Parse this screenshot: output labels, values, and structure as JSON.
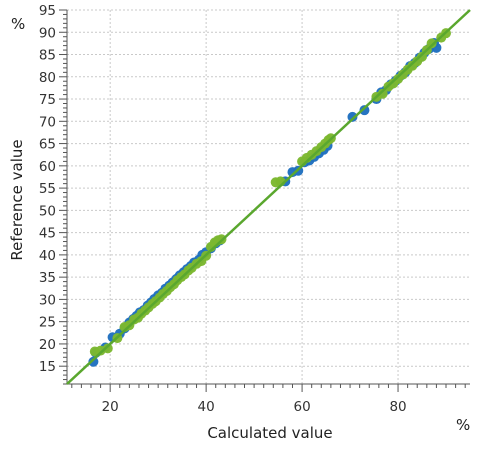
{
  "chart_data": {
    "type": "scatter",
    "xlabel": "Calculated value",
    "ylabel": "Reference value",
    "x_unit": "%",
    "y_unit": "%",
    "xlim": [
      11,
      95
    ],
    "ylim": [
      11,
      95
    ],
    "x_ticks": [
      20,
      40,
      60,
      80
    ],
    "y_ticks": [
      15,
      20,
      25,
      30,
      35,
      40,
      45,
      50,
      55,
      60,
      65,
      70,
      75,
      80,
      85,
      90,
      95
    ],
    "grid": true,
    "grid_style": "dotted",
    "regression_line": {
      "from": [
        11,
        11
      ],
      "to": [
        95,
        95
      ],
      "color": "#5aa72e"
    },
    "series": [
      {
        "color": "#1f6fbf",
        "points": [
          [
            16.5,
            16.0
          ],
          [
            17.0,
            18.0
          ],
          [
            19.0,
            19.2
          ],
          [
            20.5,
            21.5
          ],
          [
            22.0,
            22.3
          ],
          [
            23.0,
            23.5
          ],
          [
            24.0,
            24.8
          ],
          [
            24.8,
            25.6
          ],
          [
            25.5,
            26.3
          ],
          [
            26.2,
            27.1
          ],
          [
            27.0,
            27.6
          ],
          [
            27.8,
            28.6
          ],
          [
            28.5,
            29.3
          ],
          [
            29.2,
            30.1
          ],
          [
            30.0,
            30.9
          ],
          [
            30.8,
            31.5
          ],
          [
            31.5,
            32.4
          ],
          [
            32.3,
            33.1
          ],
          [
            33.0,
            33.8
          ],
          [
            33.8,
            34.6
          ],
          [
            34.5,
            35.4
          ],
          [
            35.3,
            36.1
          ],
          [
            36.0,
            36.8
          ],
          [
            36.8,
            37.5
          ],
          [
            37.5,
            38.3
          ],
          [
            38.5,
            38.9
          ],
          [
            39.2,
            40.0
          ],
          [
            40.0,
            40.6
          ],
          [
            41.0,
            41.5
          ],
          [
            42.0,
            42.6
          ],
          [
            42.8,
            43.2
          ],
          [
            56.5,
            56.5
          ],
          [
            58.0,
            58.6
          ],
          [
            59.2,
            58.9
          ],
          [
            60.5,
            60.8
          ],
          [
            61.5,
            61.2
          ],
          [
            62.5,
            62.0
          ],
          [
            63.5,
            62.8
          ],
          [
            64.5,
            63.6
          ],
          [
            65.3,
            64.5
          ],
          [
            70.5,
            71.0
          ],
          [
            73.0,
            72.5
          ],
          [
            75.5,
            75.0
          ],
          [
            76.5,
            76.5
          ],
          [
            77.5,
            77.0
          ],
          [
            78.5,
            78.3
          ],
          [
            79.5,
            79.1
          ],
          [
            80.5,
            80.2
          ],
          [
            81.5,
            81.0
          ],
          [
            82.5,
            82.4
          ],
          [
            83.5,
            83.1
          ],
          [
            84.5,
            84.3
          ],
          [
            85.5,
            85.4
          ],
          [
            86.5,
            86.3
          ],
          [
            87.5,
            87.6
          ],
          [
            88.0,
            86.5
          ]
        ]
      },
      {
        "color": "#7cb82f",
        "points": [
          [
            16.8,
            18.3
          ],
          [
            18.0,
            18.5
          ],
          [
            19.5,
            19.0
          ],
          [
            21.5,
            21.3
          ],
          [
            23.0,
            23.8
          ],
          [
            24.0,
            24.2
          ],
          [
            25.0,
            25.5
          ],
          [
            25.8,
            25.9
          ],
          [
            26.5,
            26.8
          ],
          [
            27.3,
            27.5
          ],
          [
            28.0,
            28.2
          ],
          [
            28.8,
            29.0
          ],
          [
            29.5,
            29.6
          ],
          [
            30.3,
            30.4
          ],
          [
            31.0,
            31.2
          ],
          [
            31.8,
            31.9
          ],
          [
            32.5,
            32.7
          ],
          [
            33.3,
            33.4
          ],
          [
            34.0,
            34.3
          ],
          [
            34.8,
            35.0
          ],
          [
            35.5,
            35.6
          ],
          [
            36.3,
            36.5
          ],
          [
            37.0,
            37.1
          ],
          [
            38.0,
            38.0
          ],
          [
            39.0,
            38.6
          ],
          [
            40.0,
            39.8
          ],
          [
            41.0,
            41.8
          ],
          [
            41.8,
            42.8
          ],
          [
            42.5,
            43.3
          ],
          [
            43.2,
            43.5
          ],
          [
            54.5,
            56.3
          ],
          [
            55.5,
            56.5
          ],
          [
            60.0,
            61.0
          ],
          [
            61.0,
            61.8
          ],
          [
            62.0,
            62.5
          ],
          [
            63.0,
            63.3
          ],
          [
            64.0,
            64.2
          ],
          [
            64.8,
            65.0
          ],
          [
            65.5,
            65.8
          ],
          [
            66.0,
            66.2
          ],
          [
            75.5,
            75.5
          ],
          [
            76.8,
            76.2
          ],
          [
            78.0,
            77.8
          ],
          [
            79.0,
            78.5
          ],
          [
            80.0,
            79.5
          ],
          [
            81.0,
            80.5
          ],
          [
            82.0,
            81.6
          ],
          [
            83.0,
            82.5
          ],
          [
            84.0,
            83.5
          ],
          [
            85.0,
            84.5
          ],
          [
            86.0,
            86.0
          ],
          [
            87.0,
            87.5
          ],
          [
            89.0,
            88.8
          ],
          [
            90.0,
            89.8
          ]
        ]
      }
    ]
  }
}
